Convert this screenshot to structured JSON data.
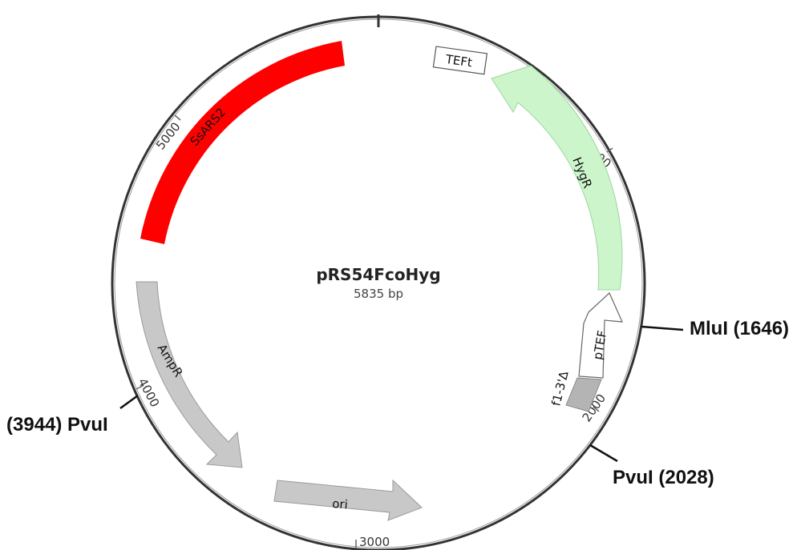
{
  "plasmid": {
    "name": "pRS54FcoHyg",
    "size_label": "5835 bp"
  },
  "ticks": [
    {
      "label": "1000"
    },
    {
      "label": "2000"
    },
    {
      "label": "3000"
    },
    {
      "label": "4000"
    },
    {
      "label": "5000"
    }
  ],
  "features": [
    {
      "label": "SsARS2",
      "color": "#ff0000"
    },
    {
      "label": "HygR",
      "color": "#ccf5cc"
    },
    {
      "label": "pTEF",
      "color": "#ffffff"
    },
    {
      "label": "f1-3'Δ",
      "color": "#b4b4b4"
    },
    {
      "label": "AmpR",
      "color": "#c8c8c8"
    },
    {
      "label": "ori",
      "color": "#c8c8c8"
    },
    {
      "label": "TEFt",
      "color": "#ffffff"
    }
  ],
  "sites": [
    {
      "label": "MluI (1646)"
    },
    {
      "label": "PvuI (2028)"
    },
    {
      "label": "(3944) PvuI"
    }
  ]
}
